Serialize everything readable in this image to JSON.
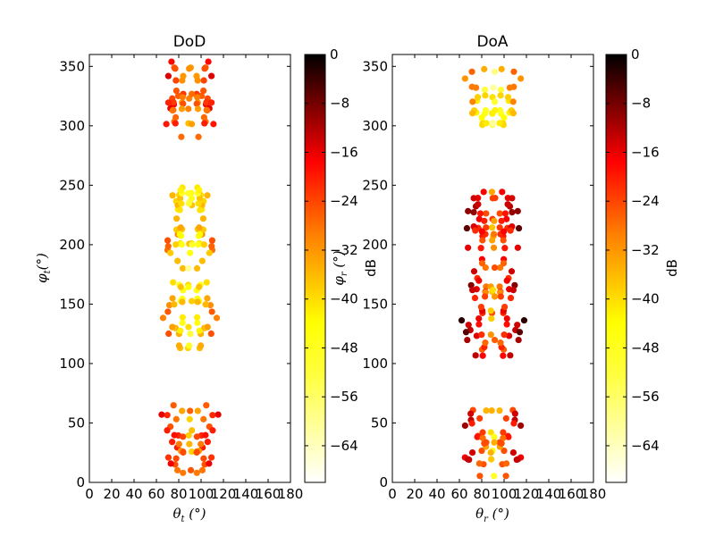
{
  "chart_data": [
    {
      "type": "scatter",
      "title": "DoD",
      "xlabel": "θ_t (°)",
      "ylabel": "φ_t (°)",
      "xlim": [
        0,
        180
      ],
      "ylim": [
        0,
        360
      ],
      "xticks": [
        "0",
        "20",
        "40",
        "60",
        "80",
        "100",
        "120",
        "140",
        "160",
        "180"
      ],
      "yticks": [
        "0",
        "50",
        "100",
        "150",
        "200",
        "250",
        "300",
        "350"
      ],
      "colorbar": {
        "label": "dB",
        "range": [
          -70,
          0
        ],
        "ticks": [
          "0",
          "−8",
          "−16",
          "−24",
          "−32",
          "−40",
          "−48",
          "−56",
          "−64"
        ],
        "colormap": "hot"
      },
      "clusters": [
        {
          "phi_range": [
            290,
            358
          ],
          "core_level": -40,
          "wing_level": -24,
          "wing_width": 28
        },
        {
          "phi_range": [
            112,
            248
          ],
          "core_level": -55,
          "wing_level": -36,
          "wing_width": 22
        },
        {
          "phi_range": [
            8,
            65
          ],
          "core_level": -42,
          "wing_level": -22,
          "wing_width": 30
        }
      ]
    },
    {
      "type": "scatter",
      "title": "DoA",
      "xlabel": "θ_r (°)",
      "ylabel": "φ_r (°)",
      "xlim": [
        0,
        180
      ],
      "ylim": [
        0,
        360
      ],
      "xticks": [
        "0",
        "20",
        "40",
        "60",
        "80",
        "100",
        "120",
        "140",
        "160",
        "180"
      ],
      "yticks": [
        "0",
        "50",
        "100",
        "150",
        "200",
        "250",
        "300",
        "350"
      ],
      "colorbar": {
        "label": "dB",
        "range": [
          -70,
          0
        ],
        "ticks": [
          "0",
          "−8",
          "−16",
          "−24",
          "−32",
          "−40",
          "−48",
          "−56",
          "−64"
        ],
        "colormap": "hot"
      },
      "clusters": [
        {
          "phi_range": [
            300,
            350
          ],
          "core_level": -55,
          "wing_level": -38,
          "wing_width": 25
        },
        {
          "phi_range": [
            105,
            245
          ],
          "core_level": -40,
          "wing_level": -10,
          "wing_width": 28
        },
        {
          "phi_range": [
            5,
            62
          ],
          "core_level": -45,
          "wing_level": -15,
          "wing_width": 30
        }
      ]
    }
  ]
}
